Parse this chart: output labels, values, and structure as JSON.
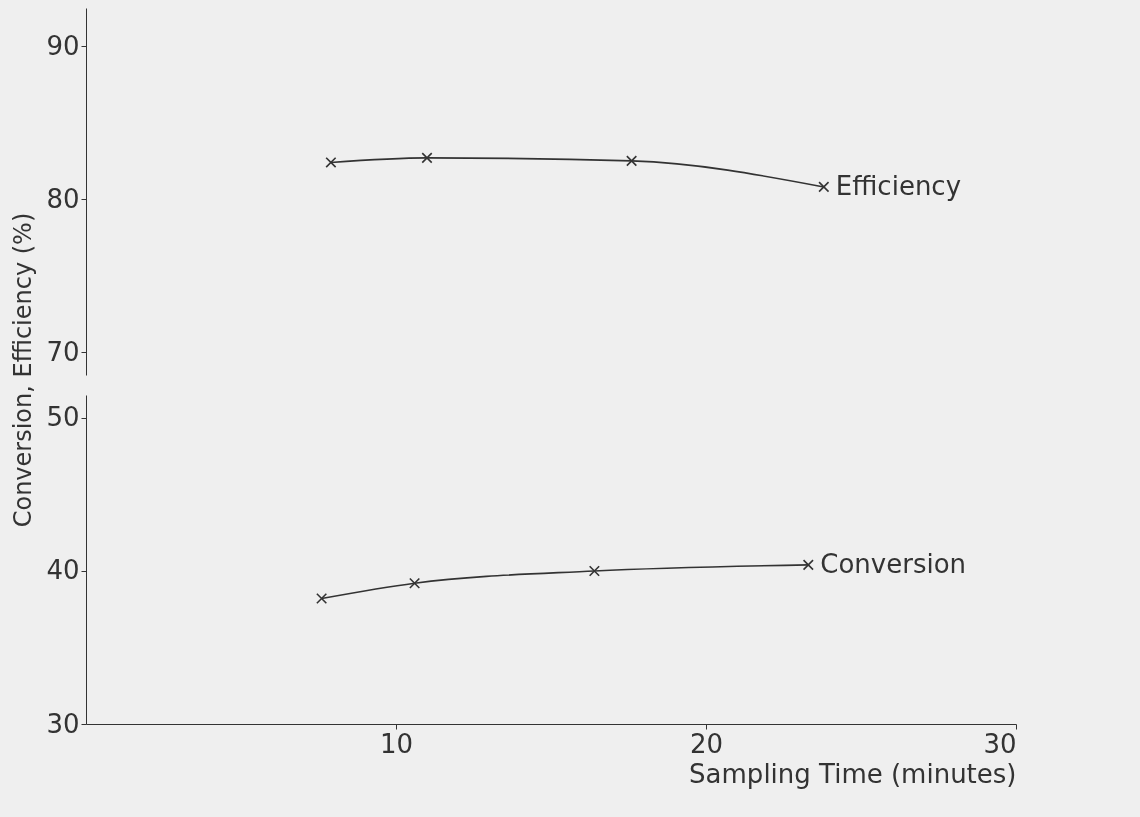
{
  "chart_data": [
    {
      "type": "line",
      "ylabel": "Conversion, Efficiency (%)",
      "x": [
        7.9,
        11.0,
        17.6,
        23.8
      ],
      "xlim": [
        0,
        30
      ],
      "ylim": [
        68.5,
        92.5
      ],
      "yticks": [
        70,
        80,
        90
      ],
      "tick_labels": "y",
      "marker": "cross",
      "legend": false,
      "grid": false,
      "series": [
        {
          "name": "Efficiency",
          "color": "#333333",
          "values": [
            82.4,
            82.7,
            82.5,
            80.8
          ]
        }
      ]
    },
    {
      "type": "line",
      "xlabel": "Sampling Time (minutes)",
      "x": [
        7.6,
        10.6,
        16.4,
        23.3
      ],
      "xlim": [
        0,
        30
      ],
      "xticks": [
        10,
        20,
        30
      ],
      "ylim": [
        30,
        51.5
      ],
      "yticks": [
        30,
        40,
        50
      ],
      "marker": "cross",
      "legend": false,
      "grid": false,
      "series": [
        {
          "name": "Conversion",
          "color": "#333333",
          "values": [
            38.2,
            39.2,
            40.0,
            40.4
          ]
        }
      ]
    }
  ]
}
